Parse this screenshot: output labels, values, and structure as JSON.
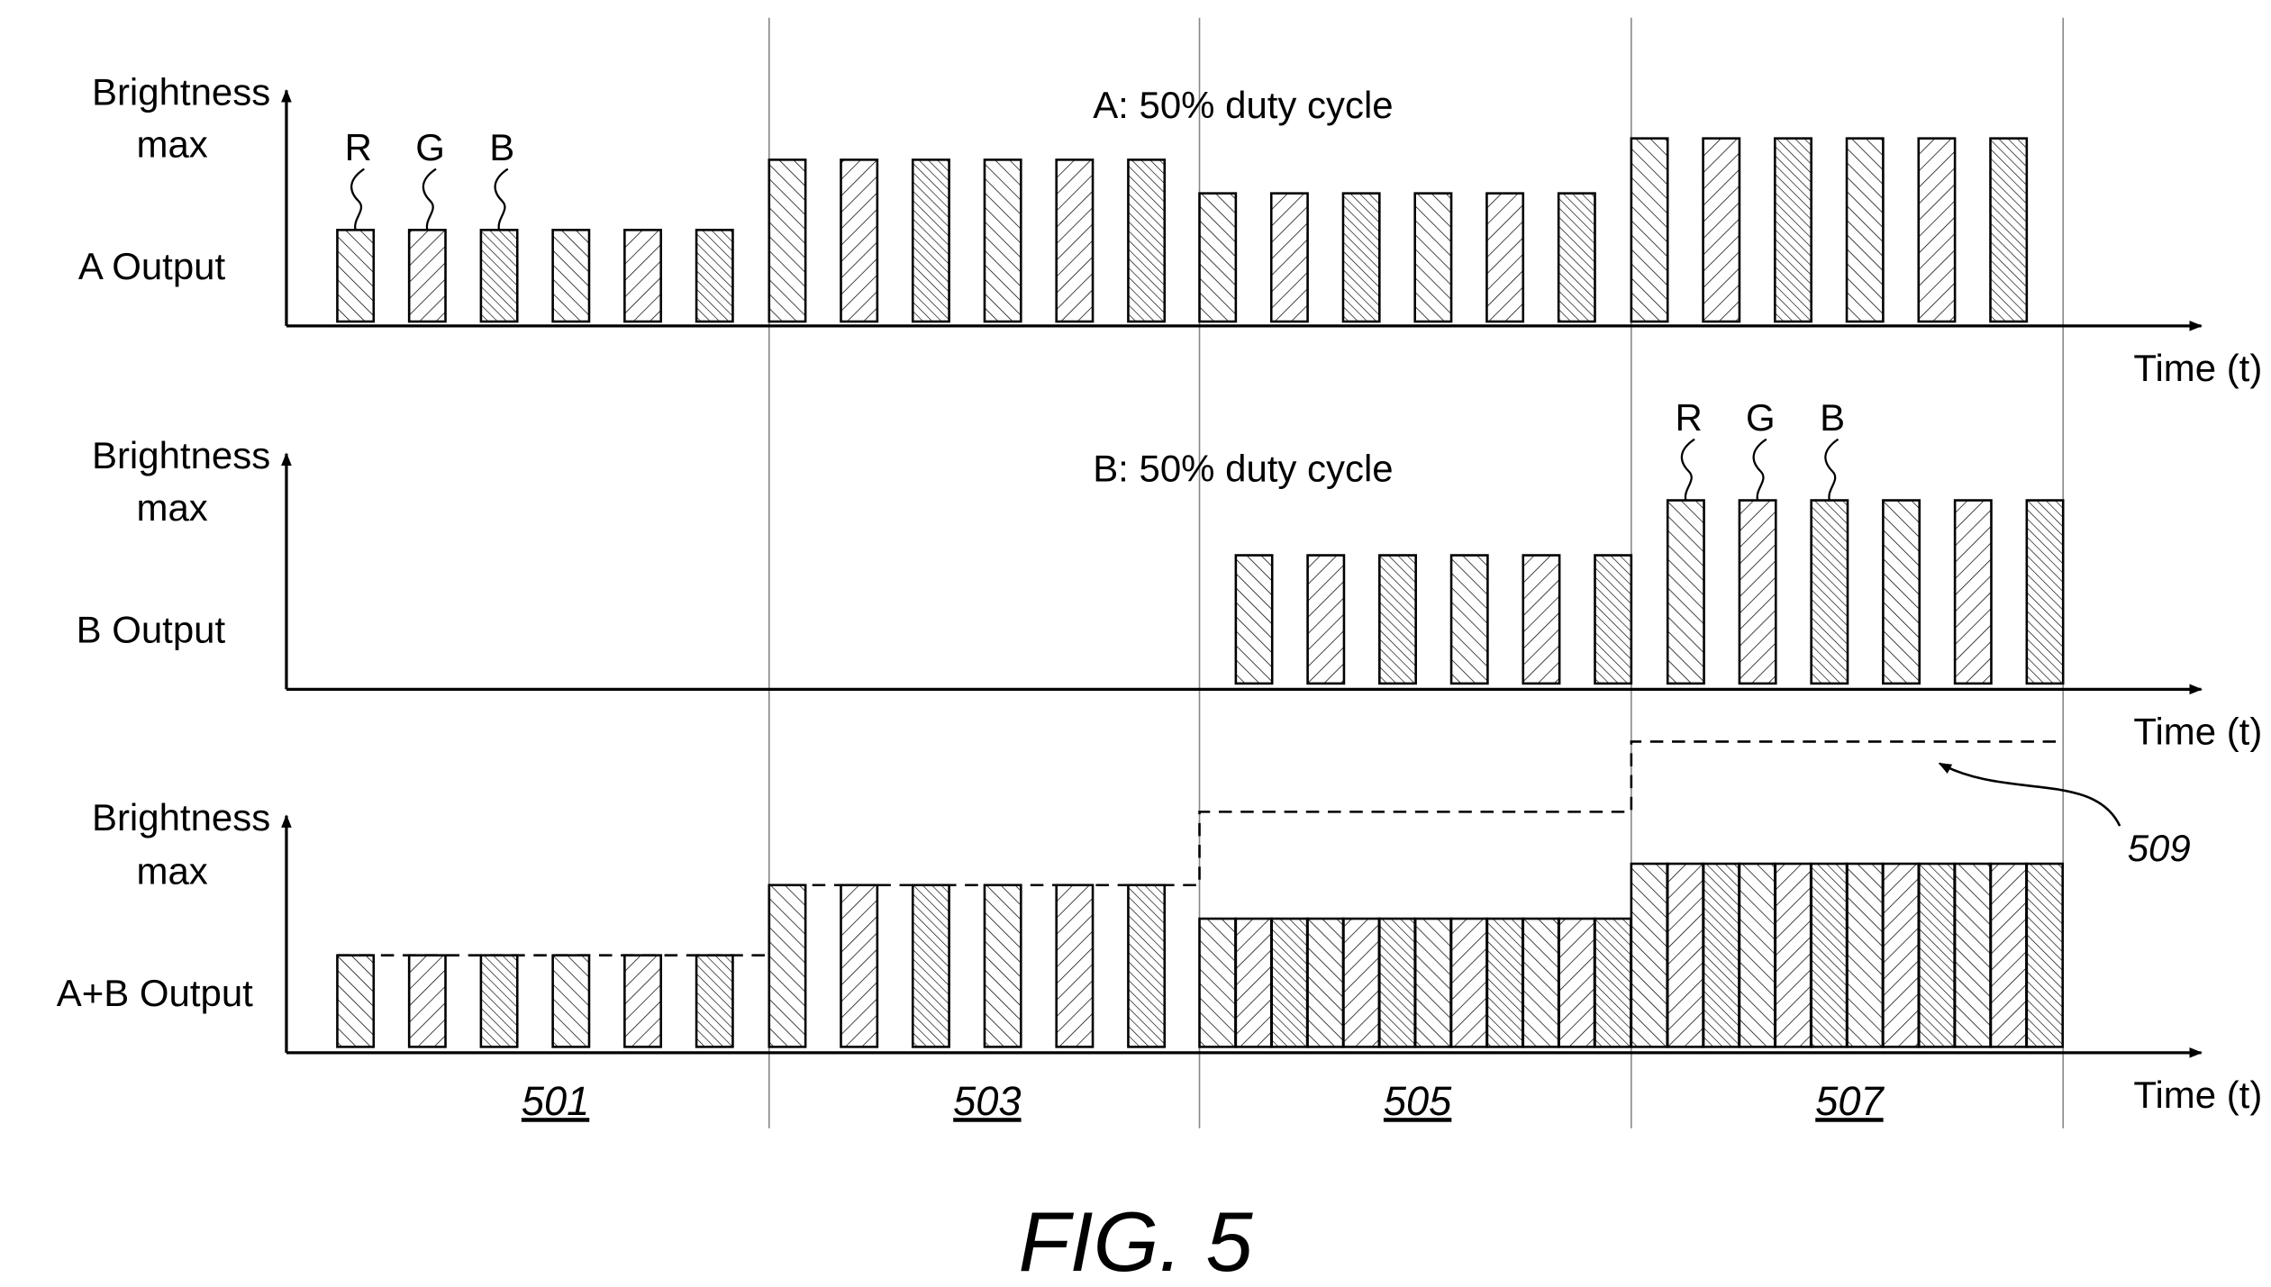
{
  "figure_label": "FIG. 5",
  "panels": [
    {
      "id": "a",
      "brightness_label": "Brightness",
      "max_label": "max",
      "output_label": "A Output",
      "time_label": "Time (t)",
      "duty_cycle_label": "A: 50% duty cycle",
      "rgb_labels": [
        "R",
        "G",
        "B"
      ],
      "pulse_groups": [
        {
          "section": "501",
          "count": 6,
          "level": 0.3
        },
        {
          "section": "503",
          "count": 6,
          "level": 0.53
        },
        {
          "section": "505",
          "count": 6,
          "level": 0.42
        },
        {
          "section": "507",
          "count": 6,
          "level": 0.6
        }
      ]
    },
    {
      "id": "b",
      "brightness_label": "Brightness",
      "max_label": "max",
      "output_label": "B Output",
      "time_label": "Time (t)",
      "duty_cycle_label": "B: 50% duty cycle",
      "rgb_labels": [
        "R",
        "G",
        "B"
      ],
      "pulse_groups": [
        {
          "section": "505",
          "count": 6,
          "level": 0.42
        },
        {
          "section": "507",
          "count": 6,
          "level": 0.6
        }
      ]
    },
    {
      "id": "ab",
      "brightness_label": "Brightness",
      "max_label": "max",
      "output_label": "A+B Output",
      "time_label": "Time (t)",
      "pulse_groups": [
        {
          "section": "501",
          "count": 6,
          "level": 0.3,
          "average": 0.3
        },
        {
          "section": "503",
          "count": 6,
          "level": 0.53,
          "average": 0.53
        },
        {
          "section": "505",
          "count": 12,
          "level": 0.42,
          "average": 0.77
        },
        {
          "section": "507",
          "count": 12,
          "level": 0.6,
          "average": 1.0
        }
      ]
    }
  ],
  "sections": [
    "501",
    "503",
    "505",
    "507"
  ],
  "reference_509": "509"
}
